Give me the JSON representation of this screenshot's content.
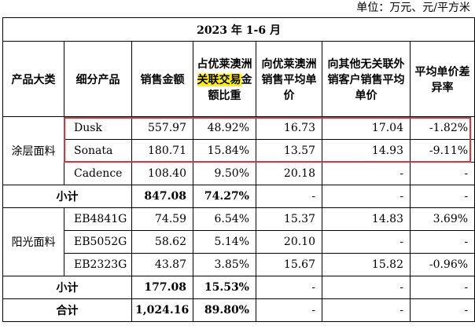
{
  "unit_label": "单位：万元、元/平方米",
  "period": "2023 年 1-6 月",
  "headers": {
    "category": "产品大类",
    "sub_product": "细分产品",
    "sales": "销售金额",
    "share_pre": "占优莱澳洲",
    "share_hl": "关联交易",
    "share_post": "金额比重",
    "to_related_price": "向优莱澳洲销售平均单价",
    "to_other_price": "向其他无关联外销客户销售平均单价",
    "diff_rate": "平均单价差异率"
  },
  "groups": [
    {
      "category": "涂层面料",
      "rows": [
        {
          "product": "Dusk",
          "sales": "557.97",
          "share": "48.92%",
          "related": "16.73",
          "other": "17.04",
          "diff": "-1.82%"
        },
        {
          "product": "Sonata",
          "sales": "180.71",
          "share": "15.84%",
          "related": "13.57",
          "other": "14.93",
          "diff": "-9.11%"
        },
        {
          "product": "Cadence",
          "sales": "108.40",
          "share": "9.50%",
          "related": "20.18",
          "other": "-",
          "diff": "-"
        }
      ],
      "subtotal": {
        "label": "小计",
        "sales": "847.08",
        "share": "74.27%",
        "related": "-",
        "other": "-",
        "diff": "-"
      }
    },
    {
      "category": "阳光面料",
      "rows": [
        {
          "product": "EB4841G",
          "sales": "74.59",
          "share": "6.54%",
          "related": "15.37",
          "other": "14.83",
          "diff": "3.69%"
        },
        {
          "product": "EB5052G",
          "sales": "58.62",
          "share": "5.14%",
          "related": "20.10",
          "other": "-",
          "diff": "-"
        },
        {
          "product": "EB2323G",
          "sales": "43.87",
          "share": "3.85%",
          "related": "15.67",
          "other": "15.82",
          "diff": "-0.96%"
        }
      ],
      "subtotal": {
        "label": "小计",
        "sales": "177.08",
        "share": "15.53%",
        "related": "-",
        "other": "-",
        "diff": "-"
      }
    }
  ],
  "total": {
    "label": "合计",
    "sales": "1,024.16",
    "share": "89.80%",
    "related": "-",
    "other": "-",
    "diff": "-"
  },
  "colors": {
    "highlight": "#fff200",
    "box": "#e0303a"
  }
}
